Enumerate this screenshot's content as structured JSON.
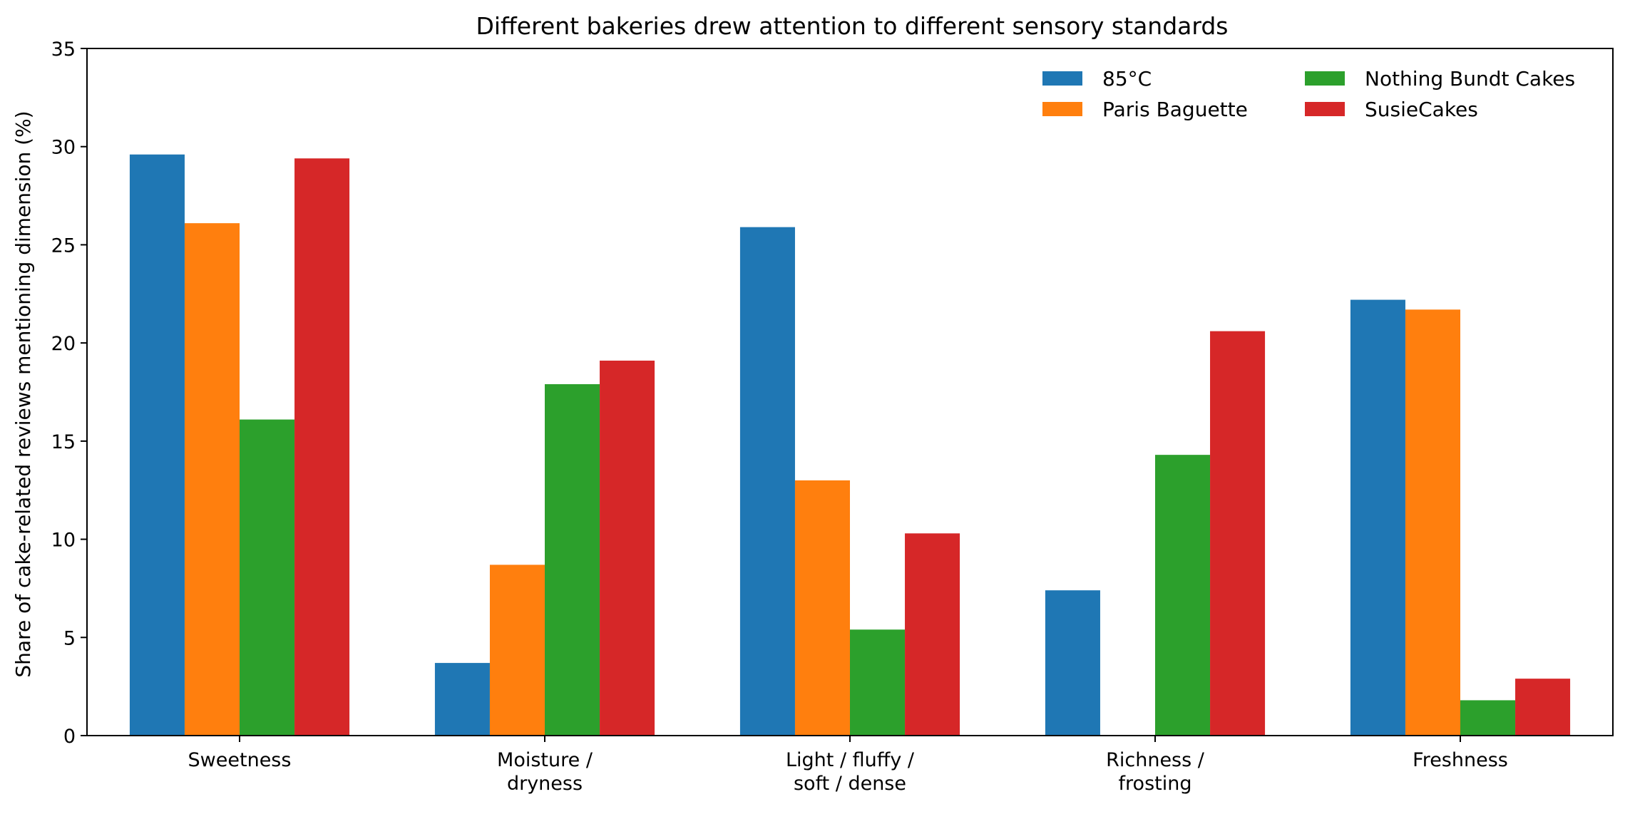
{
  "chart_data": {
    "type": "bar",
    "title": "Different bakeries drew attention to different sensory standards",
    "xlabel": "",
    "ylabel": "Share of cake-related reviews mentioning dimension (%)",
    "ylim": [
      0,
      35
    ],
    "yticks": [
      0,
      5,
      10,
      15,
      20,
      25,
      30,
      35
    ],
    "ytick_labels": [
      "0",
      "5",
      "10",
      "15",
      "20",
      "25",
      "30",
      "35"
    ],
    "categories": [
      [
        "Sweetness"
      ],
      [
        "Moisture /",
        "dryness"
      ],
      [
        "Light / fluffy /",
        "soft / dense"
      ],
      [
        "Richness /",
        "frosting"
      ],
      [
        "Freshness"
      ]
    ],
    "series": [
      {
        "name": "85°C",
        "color": "#1f77b4",
        "values": [
          29.6,
          3.7,
          25.9,
          7.4,
          22.2
        ]
      },
      {
        "name": "Paris Baguette",
        "color": "#ff7f0e",
        "values": [
          26.1,
          8.7,
          13.0,
          0.0,
          21.7
        ]
      },
      {
        "name": "Nothing Bundt Cakes",
        "color": "#2ca02c",
        "values": [
          16.1,
          17.9,
          5.4,
          14.3,
          1.8
        ]
      },
      {
        "name": "SusieCakes",
        "color": "#d62728",
        "values": [
          29.4,
          19.1,
          10.3,
          20.6,
          2.9
        ]
      }
    ],
    "grid": false,
    "legend": {
      "position": "top-right",
      "columns": 2
    }
  }
}
